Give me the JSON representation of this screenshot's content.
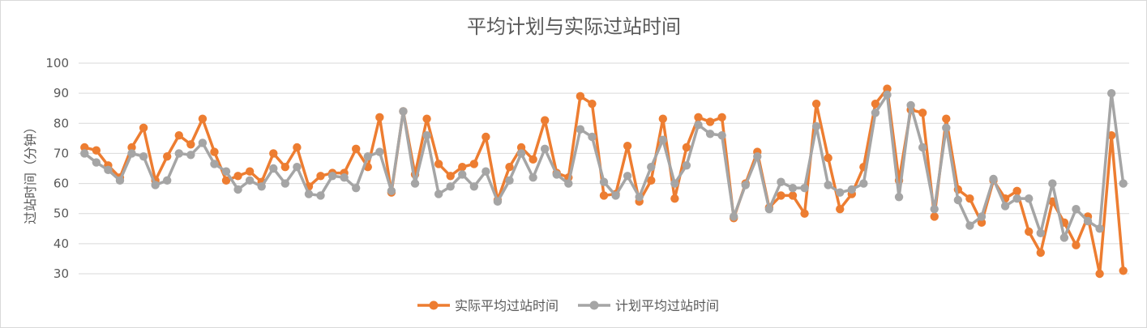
{
  "chart_data": {
    "type": "line",
    "title": "平均计划与实际过站时间",
    "xlabel": "",
    "ylabel": "过站时间（分钟）",
    "ylim": [
      30,
      100
    ],
    "yticks": [
      30,
      40,
      50,
      60,
      70,
      80,
      90,
      100
    ],
    "grid": true,
    "legend_position": "bottom",
    "colors": {
      "actual": "#ed7d31",
      "plan": "#a5a5a5",
      "grid": "#d9d9d9",
      "text": "#595959"
    },
    "series": [
      {
        "name": "实际平均过站时间",
        "color": "#ed7d31",
        "values": [
          72,
          71,
          66,
          62,
          72,
          78.5,
          61,
          69,
          76,
          73,
          81.5,
          70.5,
          61,
          62.5,
          64,
          60.5,
          70,
          65.5,
          72,
          59,
          62.5,
          63.5,
          63.5,
          71.5,
          65.5,
          82,
          57,
          84,
          63,
          81.5,
          66.5,
          62.5,
          65.5,
          66.5,
          75.5,
          54.5,
          65.5,
          72,
          68,
          81,
          63.5,
          62,
          89,
          86.5,
          56,
          56.5,
          72.5,
          54,
          61,
          81.5,
          55,
          72,
          82,
          80.5,
          82,
          48.5,
          60,
          70.5,
          52,
          56,
          56,
          50,
          86.5,
          68.5,
          51.5,
          56.5,
          65.5,
          86.5,
          91.5,
          61,
          84.5,
          83.5,
          49,
          81.5,
          58,
          55,
          47,
          61,
          55,
          57.5,
          44,
          37,
          54,
          47,
          39.5,
          49,
          30,
          76,
          31
        ]
      },
      {
        "name": "计划平均过站时间",
        "color": "#a5a5a5",
        "values": [
          70,
          67,
          64.5,
          61,
          70,
          69,
          59.5,
          61,
          70,
          69.5,
          73.5,
          66.5,
          64,
          58,
          61,
          59,
          65,
          60,
          65.5,
          56.5,
          56,
          62.5,
          62,
          58.5,
          69,
          70.5,
          57.5,
          84,
          60,
          76,
          56.5,
          59,
          63,
          59,
          64,
          54,
          61,
          70,
          62,
          71.5,
          63,
          60,
          78,
          75.5,
          60.5,
          56,
          62.5,
          55.5,
          65.5,
          74.5,
          60,
          66,
          79.5,
          76.5,
          76,
          49,
          59.5,
          69,
          51.5,
          60.5,
          58.5,
          58.5,
          79,
          59.5,
          57,
          58,
          60,
          83.5,
          89.5,
          55.5,
          86,
          72,
          51.5,
          78.5,
          54.5,
          46,
          49,
          61.5,
          52.5,
          55,
          55,
          43.5,
          60,
          42,
          51.5,
          47.5,
          45,
          90,
          60
        ]
      }
    ]
  }
}
